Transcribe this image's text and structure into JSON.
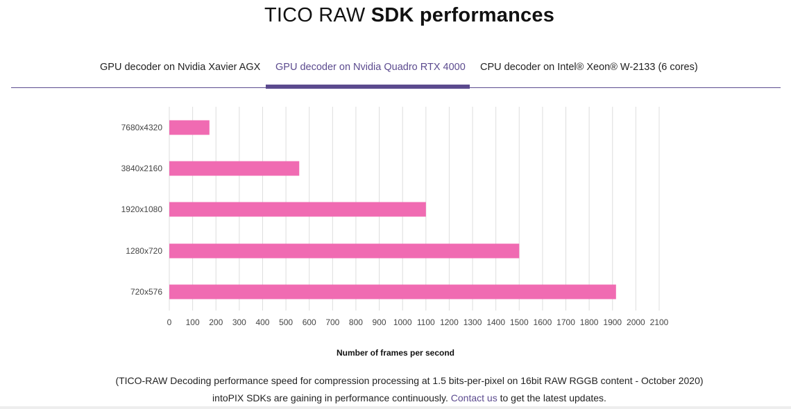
{
  "title": {
    "regular": "TICO RAW",
    "bold": "SDK performances"
  },
  "tabs": [
    {
      "label": "GPU decoder on Nvidia Xavier AGX",
      "active": false
    },
    {
      "label": "GPU decoder on Nvidia Quadro RTX 4000",
      "active": true
    },
    {
      "label": "CPU decoder on Intel® Xeon® W-2133 (6 cores)",
      "active": false
    }
  ],
  "colors": {
    "accent": "#5b4a8e",
    "bar": "#f06bb2",
    "grid": "#dddddd"
  },
  "chart_data": {
    "type": "bar",
    "orientation": "horizontal",
    "categories": [
      "7680x4320",
      "3840x2160",
      "1920x1080",
      "1280x720",
      "720x576"
    ],
    "values": [
      172,
      557,
      1100,
      1500,
      1915
    ],
    "xlabel": "Number of frames per second",
    "xlim": [
      0,
      2100
    ],
    "xticks": [
      0,
      100,
      200,
      300,
      400,
      500,
      600,
      700,
      800,
      900,
      1000,
      1100,
      1200,
      1300,
      1400,
      1500,
      1600,
      1700,
      1800,
      1900,
      2000,
      2100
    ],
    "grid": true
  },
  "footnote": {
    "line1": "(TICO-RAW Decoding performance speed for compression processing at 1.5 bits-per-pixel on 16bit RAW RGGB content - October 2020)",
    "line2_before": "intoPIX SDKs are gaining in performance continuously.",
    "link": "Contact us",
    "line2_after": "to get the latest updates."
  }
}
